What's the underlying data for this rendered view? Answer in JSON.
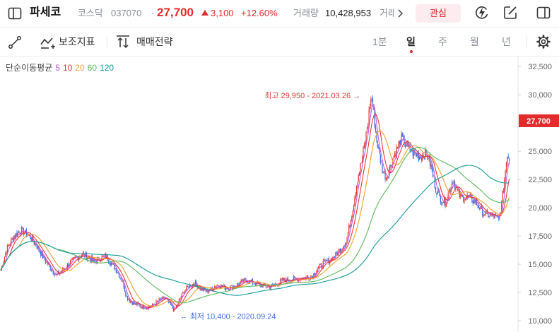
{
  "header": {
    "stock_name": "파세코",
    "market": "코스닥",
    "code": "037070",
    "separator": "·",
    "price": "27,700",
    "change": "3,100",
    "change_pct": "+12.60%",
    "volume_label": "거래량",
    "volume": "10,428,953",
    "volume_label_cut": "거래",
    "favorite_label": "관심"
  },
  "toolbar": {
    "indicators_label": "보조지표",
    "strategy_label": "매매전략",
    "periods": [
      "1분",
      "일",
      "주",
      "월",
      "년"
    ],
    "active_period": "일"
  },
  "legend": {
    "title": "단순이동평균",
    "periods": [
      {
        "label": "5",
        "color": "#c05ae0"
      },
      {
        "label": "10",
        "color": "#e53935"
      },
      {
        "label": "20",
        "color": "#f0a030"
      },
      {
        "label": "60",
        "color": "#5cb85c"
      },
      {
        "label": "120",
        "color": "#139a9a"
      }
    ]
  },
  "colors": {
    "up": "#e53935",
    "down": "#3f6fdd",
    "price_tag": "#e22b2b",
    "axis_text": "#666666"
  },
  "chart_data": {
    "type": "candlestick",
    "y_axis_ticks": [
      "32,500",
      "30,000",
      "27,500",
      "25,000",
      "22,500",
      "20,000",
      "17,500",
      "15,000",
      "12,500",
      "10,000"
    ],
    "y_range": [
      9000,
      33200
    ],
    "current_price": 27700,
    "current_price_label": "27,700",
    "max_annotation": {
      "label": "최고 29,950 - 2021.03.26",
      "value": 29950
    },
    "min_annotation": {
      "label": "최저 10,400 - 2020.09.24",
      "value": 10400
    },
    "close_path": [
      [
        0,
        14500
      ],
      [
        6,
        16300
      ],
      [
        14,
        17500
      ],
      [
        22,
        18000
      ],
      [
        30,
        17500
      ],
      [
        38,
        16600
      ],
      [
        46,
        15400
      ],
      [
        52,
        14700
      ],
      [
        58,
        14000
      ],
      [
        64,
        14400
      ],
      [
        70,
        14900
      ],
      [
        78,
        15500
      ],
      [
        85,
        15900
      ],
      [
        92,
        15600
      ],
      [
        98,
        15200
      ],
      [
        104,
        15500
      ],
      [
        110,
        15700
      ],
      [
        116,
        15100
      ],
      [
        122,
        14400
      ],
      [
        128,
        13400
      ],
      [
        132,
        12100
      ],
      [
        138,
        11600
      ],
      [
        146,
        11300
      ],
      [
        154,
        11200
      ],
      [
        160,
        11400
      ],
      [
        166,
        11800
      ],
      [
        172,
        12000
      ],
      [
        178,
        11400
      ],
      [
        182,
        10900
      ],
      [
        186,
        11600
      ],
      [
        192,
        12600
      ],
      [
        198,
        13100
      ],
      [
        204,
        13300
      ],
      [
        210,
        12800
      ],
      [
        216,
        12600
      ],
      [
        222,
        12900
      ],
      [
        228,
        13200
      ],
      [
        236,
        12900
      ],
      [
        244,
        13000
      ],
      [
        252,
        13400
      ],
      [
        258,
        13600
      ],
      [
        266,
        13300
      ],
      [
        274,
        13100
      ],
      [
        282,
        13000
      ],
      [
        290,
        13300
      ],
      [
        296,
        13600
      ],
      [
        302,
        13600
      ],
      [
        310,
        13700
      ],
      [
        318,
        13800
      ],
      [
        326,
        13900
      ],
      [
        332,
        14600
      ],
      [
        338,
        15100
      ],
      [
        344,
        15300
      ],
      [
        350,
        15700
      ],
      [
        356,
        16300
      ],
      [
        362,
        17000
      ],
      [
        366,
        18600
      ],
      [
        370,
        20400
      ],
      [
        374,
        22600
      ],
      [
        378,
        24000
      ],
      [
        382,
        25900
      ],
      [
        385,
        27600
      ],
      [
        387,
        29200
      ],
      [
        389,
        29700
      ],
      [
        391,
        28300
      ],
      [
        394,
        26000
      ],
      [
        397,
        24600
      ],
      [
        400,
        23400
      ],
      [
        404,
        22700
      ],
      [
        408,
        23600
      ],
      [
        412,
        24600
      ],
      [
        416,
        25300
      ],
      [
        420,
        26100
      ],
      [
        424,
        25700
      ],
      [
        428,
        25200
      ],
      [
        432,
        24900
      ],
      [
        436,
        24700
      ],
      [
        440,
        24500
      ],
      [
        444,
        24800
      ],
      [
        448,
        24600
      ],
      [
        452,
        23300
      ],
      [
        456,
        21700
      ],
      [
        460,
        20900
      ],
      [
        466,
        20500
      ],
      [
        470,
        21500
      ],
      [
        474,
        22500
      ],
      [
        478,
        21600
      ],
      [
        482,
        20900
      ],
      [
        486,
        20900
      ],
      [
        490,
        21000
      ],
      [
        494,
        20700
      ],
      [
        498,
        20500
      ],
      [
        502,
        20000
      ],
      [
        506,
        19500
      ],
      [
        510,
        19400
      ],
      [
        514,
        19300
      ],
      [
        518,
        19200
      ],
      [
        522,
        18900
      ],
      [
        525,
        20400
      ],
      [
        527,
        21700
      ],
      [
        529,
        23300
      ],
      [
        531,
        24800
      ],
      [
        533,
        24300
      ]
    ]
  }
}
